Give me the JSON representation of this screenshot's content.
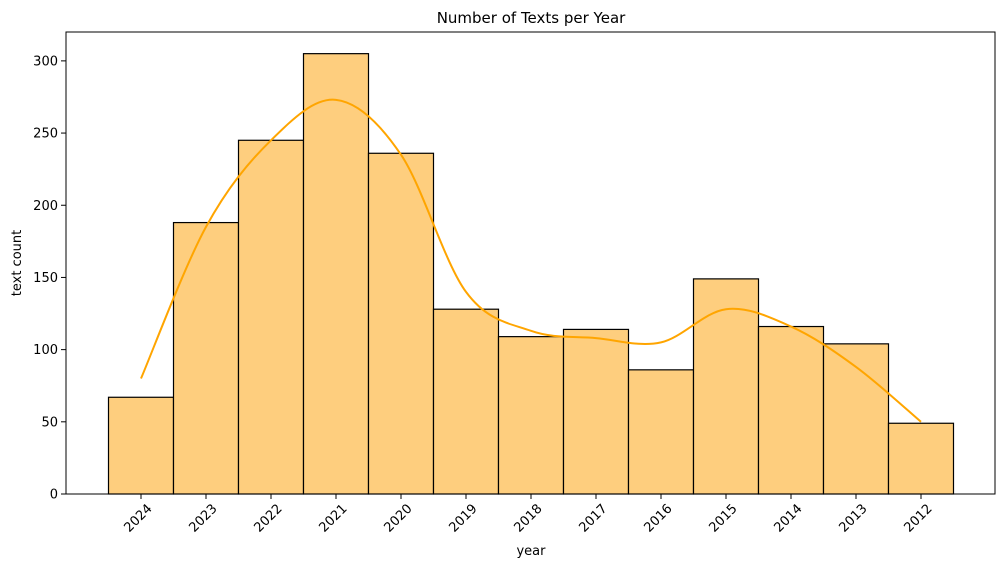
{
  "chart_data": {
    "type": "bar",
    "title": "Number of Texts per Year",
    "xlabel": "year",
    "ylabel": "text count",
    "categories": [
      "2024",
      "2023",
      "2022",
      "2021",
      "2020",
      "2019",
      "2018",
      "2017",
      "2016",
      "2015",
      "2014",
      "2013",
      "2012"
    ],
    "values": [
      67,
      188,
      245,
      305,
      236,
      128,
      109,
      114,
      86,
      149,
      116,
      104,
      49
    ],
    "yticks": [
      0,
      50,
      100,
      150,
      200,
      250,
      300
    ],
    "ylim": [
      0,
      320
    ],
    "grid": false,
    "bar_color": "#FECE7E",
    "edge_color": "#000000",
    "kde": {
      "color": "#FFA500",
      "values": [
        80,
        185,
        245,
        273,
        235,
        140,
        113,
        108,
        105,
        128,
        116,
        88,
        50
      ]
    }
  }
}
